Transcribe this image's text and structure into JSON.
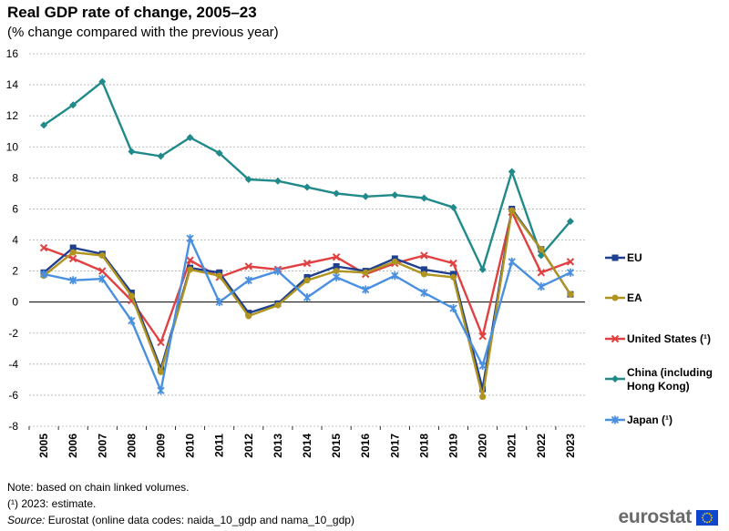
{
  "chart_data": {
    "type": "line",
    "title": "Real GDP rate of change, 2005–23",
    "subtitle": "(% change compared with the previous year)",
    "xlabel": "",
    "ylabel": "",
    "ylim": [
      -8,
      16
    ],
    "yticks": [
      -8,
      -6,
      -4,
      -2,
      0,
      2,
      4,
      6,
      8,
      10,
      12,
      14,
      16
    ],
    "categories": [
      "2005",
      "2006",
      "2007",
      "2008",
      "2009",
      "2010",
      "2011",
      "2012",
      "2013",
      "2014",
      "2015",
      "2016",
      "2017",
      "2018",
      "2019",
      "2020",
      "2021",
      "2022",
      "2023"
    ],
    "grid": true,
    "legend_position": "right",
    "series": [
      {
        "name": "EU",
        "color": "#1f3f8f",
        "marker": "square",
        "values": [
          1.9,
          3.5,
          3.1,
          0.6,
          -4.3,
          2.2,
          1.9,
          -0.7,
          -0.1,
          1.6,
          2.3,
          2.0,
          2.8,
          2.1,
          1.8,
          -5.6,
          6.0,
          3.4,
          0.5
        ]
      },
      {
        "name": "EA",
        "color": "#b09420",
        "marker": "circle",
        "values": [
          1.7,
          3.2,
          3.0,
          0.4,
          -4.5,
          2.1,
          1.7,
          -0.9,
          -0.2,
          1.4,
          2.0,
          1.9,
          2.6,
          1.8,
          1.6,
          -6.1,
          5.9,
          3.4,
          0.5
        ]
      },
      {
        "name": "United States (¹)",
        "color": "#e04040",
        "marker": "cross",
        "values": [
          3.5,
          2.8,
          2.0,
          0.1,
          -2.6,
          2.7,
          1.6,
          2.3,
          2.1,
          2.5,
          2.9,
          1.8,
          2.5,
          3.0,
          2.5,
          -2.2,
          5.8,
          1.9,
          2.6
        ]
      },
      {
        "name": "China (including Hong Kong)",
        "color": "#208a8a",
        "marker": "diamond",
        "values": [
          11.4,
          12.7,
          14.2,
          9.7,
          9.4,
          10.6,
          9.6,
          7.9,
          7.8,
          7.4,
          7.0,
          6.8,
          6.9,
          6.7,
          6.1,
          2.1,
          8.4,
          3.0,
          5.2
        ]
      },
      {
        "name": "Japan (¹)",
        "color": "#4a90e0",
        "marker": "star",
        "values": [
          1.8,
          1.4,
          1.5,
          -1.2,
          -5.7,
          4.1,
          0.0,
          1.4,
          2.0,
          0.3,
          1.6,
          0.8,
          1.7,
          0.6,
          -0.4,
          -4.1,
          2.6,
          1.0,
          1.9
        ]
      }
    ]
  },
  "notes": {
    "note1": "Note: based on chain linked volumes.",
    "note2": "(¹) 2023: estimate.",
    "source_label": "Source:",
    "source_text": " Eurostat (online data codes: naida_10_gdp and nama_10_gdp)"
  },
  "logo": {
    "text": "eurostat",
    "flag_color": "#0e47cb",
    "star_color": "#ffdd00"
  }
}
